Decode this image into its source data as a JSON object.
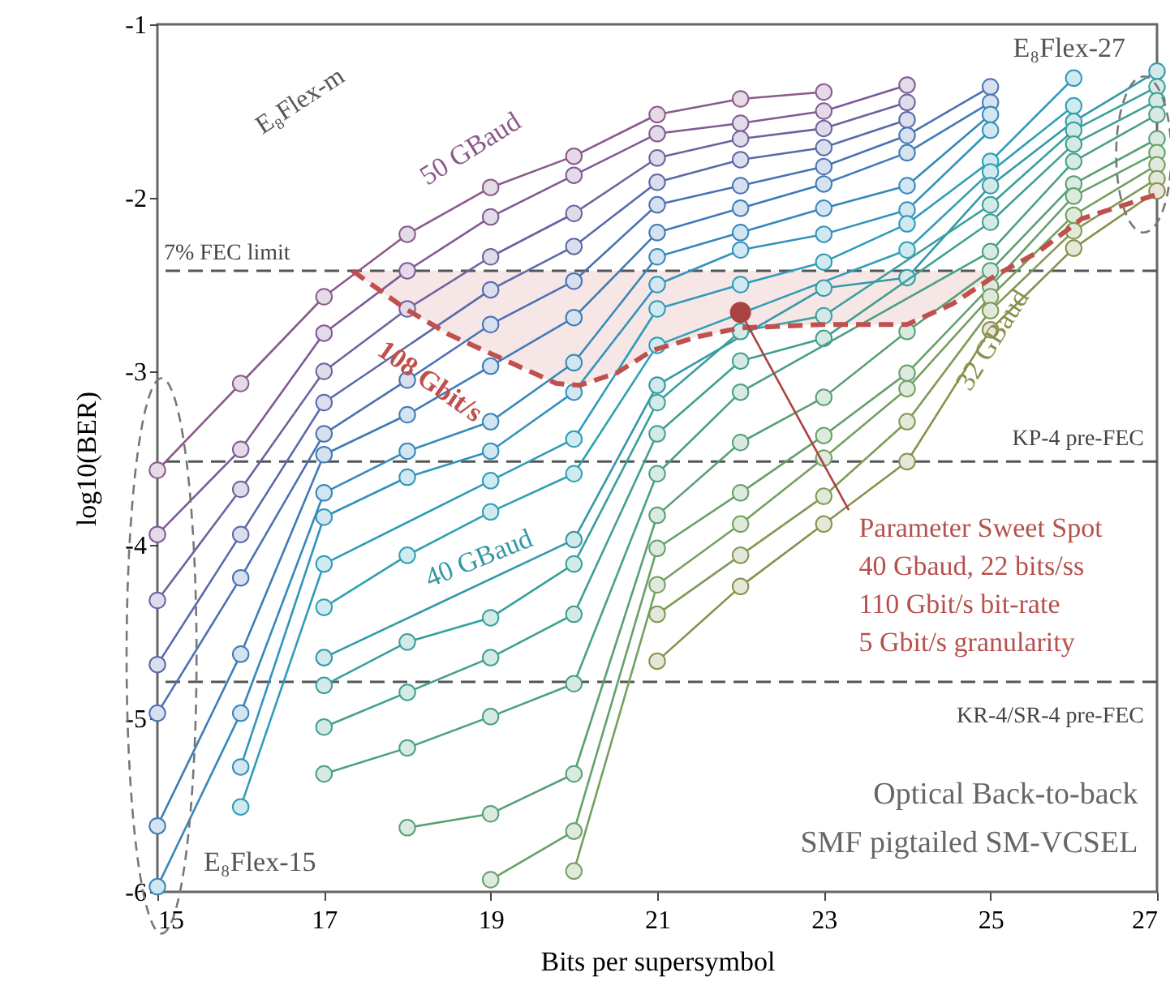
{
  "chart_data": {
    "type": "line",
    "xlabel": "Bits per supersymbol",
    "ylabel": "log10(BER)",
    "x": [
      15,
      16,
      17,
      18,
      19,
      20,
      21,
      22,
      23,
      24,
      25,
      26,
      27
    ],
    "xlim": [
      15,
      27
    ],
    "ylim": [
      -6,
      -1
    ],
    "xticks": [
      15,
      17,
      19,
      21,
      23,
      25,
      27
    ],
    "yticks": [
      -1,
      -2,
      -3,
      -4,
      -5,
      -6
    ],
    "marker": "circle",
    "line_style": "solid",
    "series": [
      {
        "name": "50 GBaud",
        "color": "#8b5a8c",
        "values": [
          -3.57,
          -3.07,
          -2.57,
          -2.21,
          -1.94,
          -1.76,
          -1.52,
          -1.43,
          -1.39,
          null,
          null,
          null,
          null
        ]
      },
      {
        "color": "#7f5a95",
        "values": [
          -3.94,
          -3.45,
          -2.78,
          -2.42,
          -2.11,
          -1.87,
          -1.63,
          -1.57,
          -1.5,
          -1.35,
          null,
          null,
          null
        ]
      },
      {
        "color": "#6e62a0",
        "values": [
          -4.32,
          -3.68,
          -3.0,
          -2.64,
          -2.34,
          -2.09,
          -1.77,
          -1.66,
          -1.6,
          -1.45,
          null,
          null,
          null
        ]
      },
      {
        "color": "#5b69aa",
        "values": [
          -4.69,
          -3.94,
          -3.18,
          null,
          -2.53,
          -2.28,
          -1.91,
          -1.78,
          -1.71,
          -1.55,
          null,
          null,
          null
        ]
      },
      {
        "color": "#4a72b3",
        "values": [
          -4.97,
          -4.19,
          -3.36,
          -3.05,
          -2.73,
          -2.48,
          -2.04,
          -1.93,
          -1.82,
          -1.64,
          -1.36,
          null,
          null
        ]
      },
      {
        "color": "#3e7cb8",
        "values": [
          -5.62,
          -4.63,
          -3.48,
          -3.25,
          -2.97,
          -2.69,
          -2.2,
          -2.06,
          -1.92,
          -1.74,
          -1.45,
          null,
          null
        ]
      },
      {
        "color": "#3688bb",
        "values": [
          -5.97,
          -4.97,
          -3.7,
          -3.46,
          -3.29,
          -2.95,
          -2.34,
          -2.2,
          -2.06,
          -1.93,
          -1.52,
          null,
          null
        ]
      },
      {
        "color": "#3293bc",
        "values": [
          null,
          -5.28,
          -3.84,
          -3.61,
          -3.46,
          -3.12,
          -2.5,
          -2.3,
          -2.21,
          -2.07,
          -1.61,
          null,
          null
        ]
      },
      {
        "color": "#2f9bbb",
        "values": [
          null,
          -5.51,
          -4.11,
          null,
          -3.63,
          -3.39,
          -2.64,
          -2.5,
          -2.37,
          -2.15,
          -1.79,
          -1.31,
          null
        ]
      },
      {
        "color": "#2fa0b5",
        "values": [
          null,
          null,
          -4.36,
          -4.06,
          -3.81,
          -3.59,
          -2.85,
          null,
          null,
          -2.3,
          -1.85,
          -1.47,
          null
        ]
      },
      {
        "name": "40 GBaud",
        "color": "#3399a8",
        "values": [
          null,
          null,
          -4.65,
          null,
          null,
          -3.97,
          -3.08,
          null,
          -2.52,
          -2.46,
          -1.93,
          -1.56,
          -1.27
        ]
      },
      {
        "color": "#38a09d",
        "values": [
          null,
          null,
          -4.81,
          -4.56,
          -4.42,
          -4.11,
          -3.18,
          -2.77,
          -2.68,
          null,
          -2.04,
          -1.61,
          -1.36
        ]
      },
      {
        "color": "#3fa090",
        "values": [
          null,
          null,
          -5.05,
          -4.85,
          -4.65,
          -4.4,
          -3.36,
          -2.94,
          -2.81,
          null,
          -2.14,
          -1.69,
          -1.44
        ]
      },
      {
        "color": "#4aa083",
        "values": [
          null,
          null,
          -5.32,
          -5.17,
          -4.99,
          -4.8,
          -3.59,
          -3.12,
          null,
          null,
          -2.31,
          -1.79,
          -1.52
        ]
      },
      {
        "color": "#58a076",
        "values": [
          null,
          null,
          null,
          -5.63,
          -5.55,
          -5.32,
          -3.83,
          -3.41,
          -3.15,
          -2.77,
          -2.42,
          -1.92,
          -1.66
        ]
      },
      {
        "color": "#66a06a",
        "values": [
          null,
          null,
          null,
          null,
          -5.93,
          -5.65,
          -4.02,
          -3.7,
          -3.37,
          -3.01,
          -2.51,
          -1.99,
          -1.74
        ]
      },
      {
        "color": "#74a060",
        "values": [
          null,
          null,
          null,
          null,
          null,
          -5.88,
          -4.23,
          -3.88,
          -3.5,
          -3.1,
          -2.57,
          -2.1,
          -1.81
        ]
      },
      {
        "color": "#809a55",
        "values": [
          null,
          null,
          null,
          null,
          null,
          null,
          -4.4,
          -4.06,
          -3.72,
          -3.29,
          -2.65,
          -2.19,
          -1.89
        ]
      },
      {
        "name": "32 GBaud",
        "color": "#8a904c",
        "values": [
          null,
          null,
          null,
          null,
          null,
          null,
          -4.67,
          -4.24,
          -3.88,
          -3.52,
          -2.76,
          -2.29,
          -1.96
        ]
      },
      {
        "name": "108 Gbit/s",
        "type": "line",
        "marker": "none",
        "line_style": "dashed",
        "color": "#c0504d",
        "x": [
          17.34,
          17.98,
          18.51,
          19.15,
          19.79,
          20.07,
          20.51,
          20.94,
          21.49,
          21.99,
          22.99,
          24.0,
          24.55,
          25.05,
          25.58,
          26.1,
          27.0
        ],
        "values": [
          -2.42,
          -2.64,
          -2.79,
          -2.93,
          -3.07,
          -3.08,
          -3.01,
          -2.88,
          -2.8,
          -2.75,
          -2.73,
          -2.73,
          -2.61,
          -2.45,
          -2.31,
          -2.12,
          -1.98
        ],
        "lower": [
          -2.42,
          -2.64,
          -2.79,
          -2.93,
          -3.07,
          -3.08,
          -3.01,
          -2.88,
          -2.8,
          -2.75,
          -2.73,
          -2.73,
          -2.61,
          -2.45,
          null,
          null,
          null
        ],
        "upper": [
          -2.42,
          -2.42,
          -2.42,
          -2.42,
          -2.42,
          -2.42,
          -2.42,
          -2.42,
          -2.42,
          -2.42,
          -2.42,
          -2.42,
          -2.42,
          -2.42,
          null,
          null,
          null
        ]
      }
    ],
    "ref_lines": [
      {
        "axis": "y",
        "value": -2.42,
        "label": "7% FEC limit",
        "line_style": "dashed",
        "color": "#555555"
      },
      {
        "axis": "y",
        "value": -3.52,
        "label": "KP-4 pre-FEC",
        "line_style": "dashed",
        "color": "#555555"
      },
      {
        "axis": "y",
        "value": -4.79,
        "label": "KR-4/SR-4 pre-FEC",
        "line_style": "dashed",
        "color": "#555555"
      }
    ],
    "annotations": [
      "E₈Flex-m",
      "E₈Flex-27",
      "E₈Flex-15",
      {
        "text": "Parameter Sweet Spot\n40 Gbaud, 22 bits/ss\n110 Gbit/s bit-rate\n5 Gbit/s granularity",
        "x": 22,
        "y": -2.66
      },
      "Optical Back-to-back\nSMF pigtailed SM-VCSEL"
    ]
  }
}
